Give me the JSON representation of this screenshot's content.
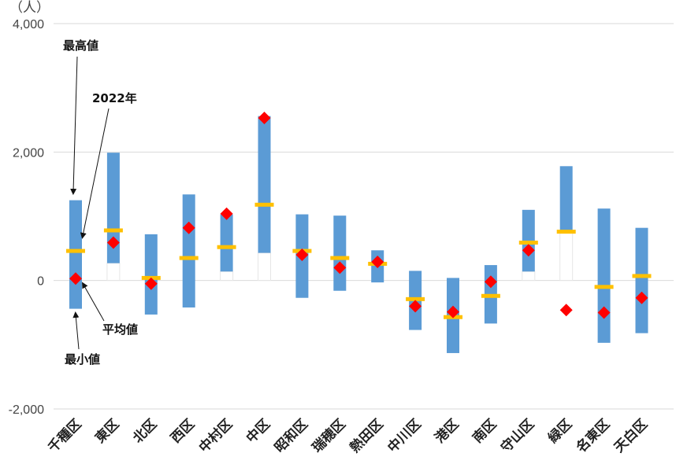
{
  "chart_data": {
    "type": "bar",
    "unit_label": "（人）",
    "ylim": [
      -2000,
      4000
    ],
    "yticks": [
      {
        "value": 4000,
        "label": "4,000",
        "color": "#444444"
      },
      {
        "value": 2000,
        "label": "2,000",
        "color": "#444444"
      },
      {
        "value": 0,
        "label": "0",
        "color": "#444444"
      },
      {
        "value": -2000,
        "label": "-2,000",
        "color": "#e00000"
      }
    ],
    "grid": true,
    "categories": [
      "千種区",
      "東区",
      "北区",
      "西区",
      "中村区",
      "中区",
      "昭和区",
      "瑞穂区",
      "熱田区",
      "中川区",
      "港区",
      "南区",
      "守山区",
      "緑区",
      "名東区",
      "天白区"
    ],
    "series": [
      {
        "name": "最高値",
        "values": [
          1250,
          1990,
          720,
          1340,
          1030,
          2560,
          1030,
          1010,
          470,
          150,
          40,
          240,
          1100,
          1780,
          1120,
          820
        ]
      },
      {
        "name": "最小値",
        "values": [
          -440,
          270,
          -530,
          -420,
          140,
          430,
          -270,
          -160,
          -30,
          -770,
          -1130,
          -670,
          140,
          750,
          -970,
          -820
        ]
      },
      {
        "name": "平均値",
        "values": [
          460,
          780,
          40,
          350,
          520,
          1180,
          460,
          350,
          260,
          -290,
          -570,
          -240,
          590,
          760,
          -100,
          70
        ]
      },
      {
        "name": "2022年",
        "values": [
          30,
          590,
          -50,
          820,
          1040,
          2530,
          400,
          200,
          290,
          -400,
          -490,
          -20,
          470,
          -460,
          -500,
          -270
        ]
      }
    ],
    "annotations": [
      {
        "text": "最高値",
        "target": "千種区 最高値"
      },
      {
        "text": "2022年",
        "target": "千種区 2022年"
      },
      {
        "text": "平均値",
        "target": "千種区 平均値"
      },
      {
        "text": "最小値",
        "target": "千種区 最小値"
      }
    ],
    "colors": {
      "range_bar": "#5b9bd5",
      "average": "#ffc000",
      "year_marker": "#ff0000",
      "grid": "#d9d9d9"
    }
  }
}
